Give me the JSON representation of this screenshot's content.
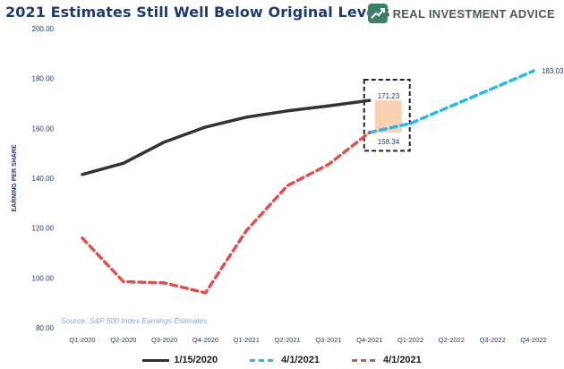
{
  "title": "2021 Estimates Still Well Below Original Levels",
  "brand": {
    "name": "REAL INVESTMENT ADVICE",
    "logo_icon": "rising-chart-icon",
    "color": "#3d7e66"
  },
  "chart_data": {
    "type": "line",
    "title": "2021 Estimates Still Well Below Original Levels",
    "xlabel": "",
    "ylabel": "EARNING PER SHARE",
    "ylim": [
      80,
      200
    ],
    "yticks": [
      80,
      100,
      120,
      140,
      160,
      180,
      200
    ],
    "ytick_labels": [
      "80.00",
      "100.00",
      "120.00",
      "140.00",
      "160.00",
      "180.00",
      "200.00"
    ],
    "grid": false,
    "legend_position": "bottom",
    "categories": [
      "Q1-2020",
      "Q2-2020",
      "Q3-2020",
      "Q4-2020",
      "Q1-2021",
      "Q2-2021",
      "Q3-2021",
      "Q4-2021",
      "Q1-2022",
      "Q2-2022",
      "Q3-2022",
      "Q4-2022"
    ],
    "series": [
      {
        "name": "1/15/2020",
        "color": "#333333",
        "style": "solid",
        "values": [
          141.5,
          146,
          154.5,
          160.5,
          164.5,
          167,
          169,
          171.23,
          null,
          null,
          null,
          null
        ]
      },
      {
        "name": "4/1/2021",
        "color": "#29b6e8",
        "style": "dashed",
        "values": [
          null,
          null,
          null,
          null,
          null,
          null,
          null,
          158.34,
          162,
          169,
          176,
          183.03
        ]
      },
      {
        "name": "4/1/2021",
        "color": "#d9534f",
        "style": "dashed",
        "values": [
          116,
          98.5,
          98,
          94,
          119,
          137,
          145.5,
          158.34,
          null,
          null,
          null,
          null
        ]
      }
    ],
    "annotations": [
      {
        "text": "171.23",
        "x": "Q4-2021",
        "y": 171.23
      },
      {
        "text": "158.34",
        "x": "Q4-2021",
        "y": 158.34
      },
      {
        "text": "183.03",
        "x": "Q4-2022",
        "y": 183.03
      }
    ],
    "source": "Source: S&P 500 Index Earnings Estimates",
    "highlight": {
      "x": "Q4-2021",
      "from": 158.34,
      "to": 171.23,
      "fill": "#f9c29a"
    }
  }
}
